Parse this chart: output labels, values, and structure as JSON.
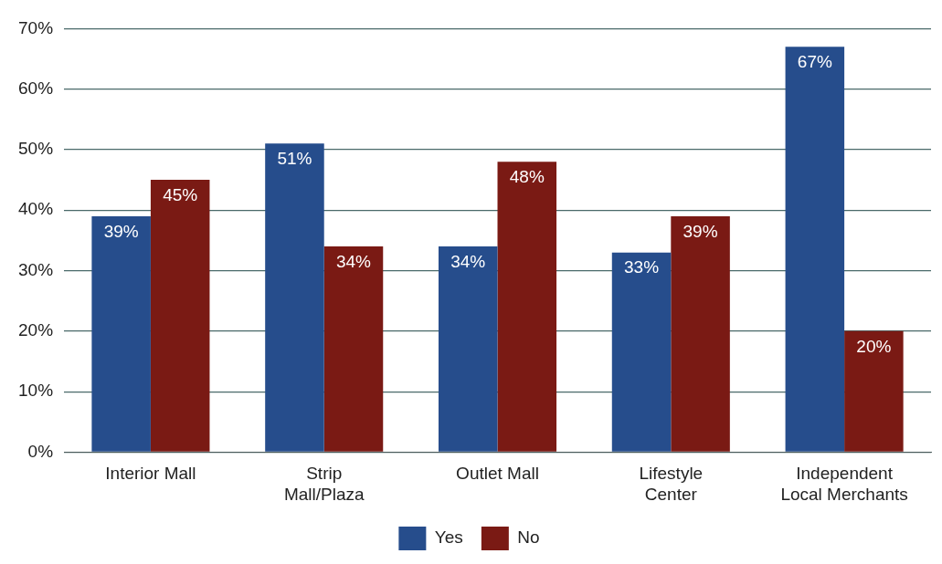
{
  "chart_data": {
    "type": "bar",
    "categories": [
      "Interior Mall",
      "Strip Mall/Plaza",
      "Outlet Mall",
      "Lifestyle Center",
      "Independent Local Merchants"
    ],
    "series": [
      {
        "name": "Yes",
        "color": "#264d8c",
        "values": [
          39,
          51,
          34,
          33,
          67
        ],
        "value_labels": [
          "39%",
          "51%",
          "34%",
          "33%",
          "67%"
        ]
      },
      {
        "name": "No",
        "color": "#7a1a14",
        "values": [
          45,
          34,
          48,
          39,
          20
        ],
        "value_labels": [
          "45%",
          "34%",
          "48%",
          "39%",
          "20%"
        ]
      }
    ],
    "ylim": [
      0,
      70
    ],
    "yticks": [
      {
        "value": 0,
        "label": "0%"
      },
      {
        "value": 10,
        "label": "10%"
      },
      {
        "value": 20,
        "label": "20%"
      },
      {
        "value": 30,
        "label": "30%"
      },
      {
        "value": 40,
        "label": "40%"
      },
      {
        "value": 50,
        "label": "50%"
      },
      {
        "value": 60,
        "label": "60%"
      },
      {
        "value": 70,
        "label": "70%"
      }
    ],
    "grid": "y",
    "legend": "bottom"
  }
}
